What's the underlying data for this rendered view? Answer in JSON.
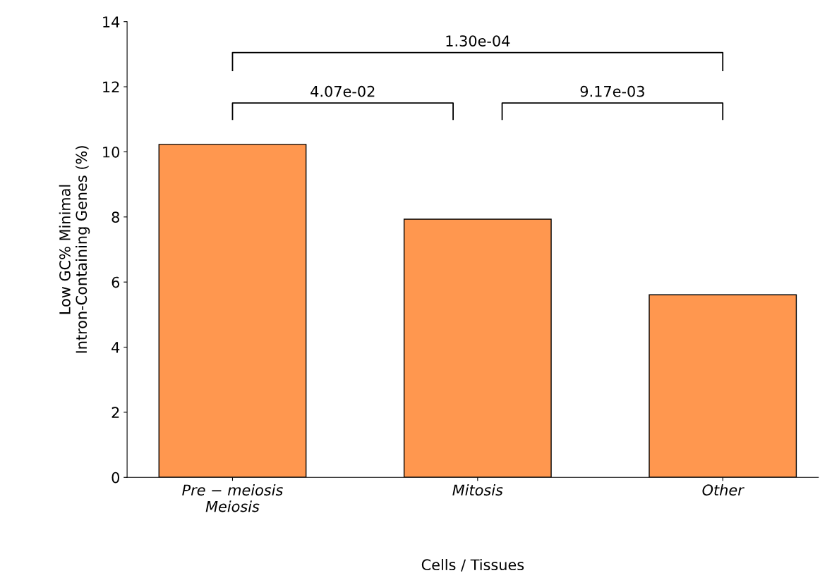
{
  "chart_data": {
    "type": "bar",
    "xlabel": "Cells / Tissues",
    "ylabel": "Low GC% Minimal\nIntron-Containing Genes (%)",
    "categories": [
      "Pre − meiosis\nMeiosis",
      "Mitosis",
      "Other"
    ],
    "values": [
      10.23,
      7.93,
      5.61
    ],
    "color": "#ff974f",
    "ylim": [
      0,
      14
    ],
    "yticks": [
      0,
      2,
      4,
      6,
      8,
      10,
      12,
      14
    ],
    "grid": false,
    "annotations": [
      "1.30e-04",
      "4.07e-02",
      "9.17e-03"
    ]
  }
}
